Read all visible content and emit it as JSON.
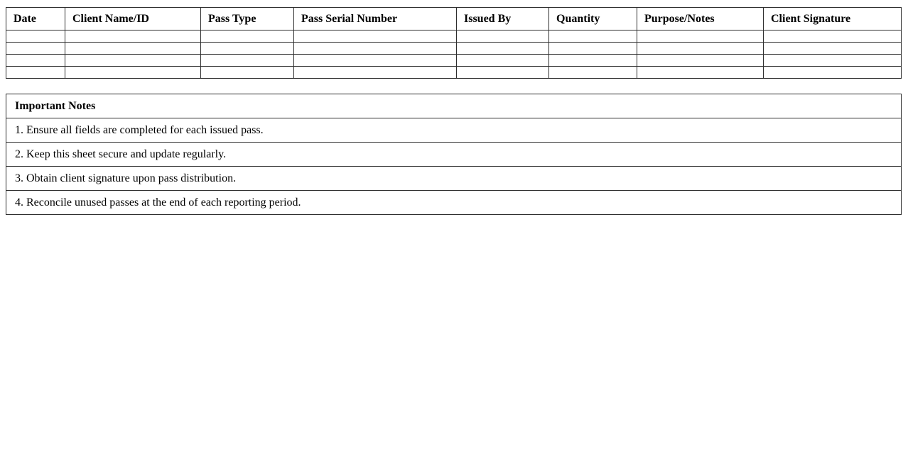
{
  "log_table": {
    "columns": [
      "Date",
      "Client Name/ID",
      "Pass Type",
      "Pass Serial Number",
      "Issued By",
      "Quantity",
      "Purpose/Notes",
      "Client Signature"
    ],
    "empty_row_count": 4
  },
  "notes": {
    "title": "Important Notes",
    "items": [
      "1. Ensure all fields are completed for each issued pass.",
      "2. Keep this sheet secure and update regularly.",
      "3. Obtain client signature upon pass distribution.",
      "4. Reconcile unused passes at the end of each reporting period."
    ]
  },
  "colors": {
    "background": "#ffffff",
    "border": "#2e2e2e",
    "text": "#000000"
  }
}
